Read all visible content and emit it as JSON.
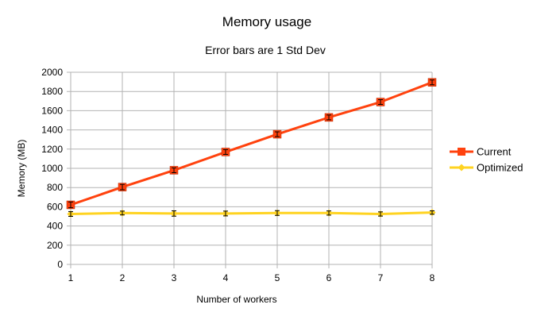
{
  "chart_data": {
    "type": "line",
    "title": "Memory usage",
    "subtitle": "Error bars are 1 Std Dev",
    "xlabel": "Number of workers",
    "ylabel": "Memory (MB)",
    "x": [
      1,
      2,
      3,
      4,
      5,
      6,
      7,
      8
    ],
    "xlim": [
      1,
      8
    ],
    "ylim": [
      0,
      2000
    ],
    "yticks": [
      0,
      200,
      400,
      600,
      800,
      1000,
      1200,
      1400,
      1600,
      1800,
      2000
    ],
    "grid": true,
    "legend_position": "right",
    "series": [
      {
        "name": "Current",
        "color": "#ff420e",
        "marker": "square",
        "values": [
          620,
          805,
          980,
          1170,
          1355,
          1530,
          1690,
          1895
        ],
        "error": [
          30,
          28,
          25,
          25,
          25,
          25,
          25,
          25
        ]
      },
      {
        "name": "Optimized",
        "color": "#ffd320",
        "marker": "diamond",
        "values": [
          525,
          535,
          530,
          530,
          535,
          535,
          525,
          540
        ],
        "error": [
          25,
          20,
          28,
          25,
          25,
          22,
          22,
          18
        ]
      }
    ]
  }
}
